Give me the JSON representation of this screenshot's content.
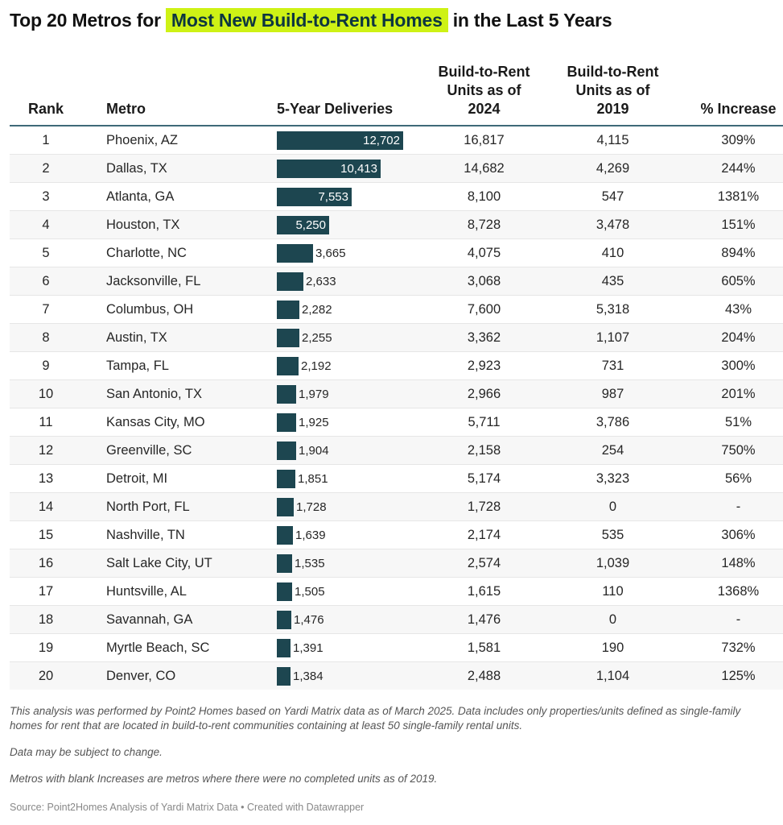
{
  "title": {
    "prefix": "Top 20 Metros for",
    "highlight": "Most New Build-to-Rent Homes",
    "suffix": "in the Last 5 Years",
    "highlight_color": "#cef215"
  },
  "colors": {
    "bar": "#1d4650",
    "header_rule": "#3f6a78"
  },
  "chart_data": {
    "type": "table",
    "title": "Top 20 Metros for Most New Build-to-Rent Homes in the Last 5 Years",
    "columns": [
      "Rank",
      "Metro",
      "5-Year Deliveries",
      "Build-to-Rent Units as of 2024",
      "Build-to-Rent Units as of 2019",
      "% Increase"
    ],
    "bar_column": "5-Year Deliveries",
    "bar_max": 12702,
    "rows": [
      {
        "rank": "1",
        "metro": "Phoenix, AZ",
        "deliveries": 12702,
        "deliveries_label": "12,702",
        "units_2024": "16,817",
        "units_2019": "4,115",
        "increase": "309%"
      },
      {
        "rank": "2",
        "metro": "Dallas, TX",
        "deliveries": 10413,
        "deliveries_label": "10,413",
        "units_2024": "14,682",
        "units_2019": "4,269",
        "increase": "244%"
      },
      {
        "rank": "3",
        "metro": "Atlanta, GA",
        "deliveries": 7553,
        "deliveries_label": "7,553",
        "units_2024": "8,100",
        "units_2019": "547",
        "increase": "1381%"
      },
      {
        "rank": "4",
        "metro": "Houston, TX",
        "deliveries": 5250,
        "deliveries_label": "5,250",
        "units_2024": "8,728",
        "units_2019": "3,478",
        "increase": "151%"
      },
      {
        "rank": "5",
        "metro": "Charlotte, NC",
        "deliveries": 3665,
        "deliveries_label": "3,665",
        "units_2024": "4,075",
        "units_2019": "410",
        "increase": "894%"
      },
      {
        "rank": "6",
        "metro": "Jacksonville, FL",
        "deliveries": 2633,
        "deliveries_label": "2,633",
        "units_2024": "3,068",
        "units_2019": "435",
        "increase": "605%"
      },
      {
        "rank": "7",
        "metro": "Columbus, OH",
        "deliveries": 2282,
        "deliveries_label": "2,282",
        "units_2024": "7,600",
        "units_2019": "5,318",
        "increase": "43%"
      },
      {
        "rank": "8",
        "metro": "Austin, TX",
        "deliveries": 2255,
        "deliveries_label": "2,255",
        "units_2024": "3,362",
        "units_2019": "1,107",
        "increase": "204%"
      },
      {
        "rank": "9",
        "metro": "Tampa, FL",
        "deliveries": 2192,
        "deliveries_label": "2,192",
        "units_2024": "2,923",
        "units_2019": "731",
        "increase": "300%"
      },
      {
        "rank": "10",
        "metro": "San Antonio, TX",
        "deliveries": 1979,
        "deliveries_label": "1,979",
        "units_2024": "2,966",
        "units_2019": "987",
        "increase": "201%"
      },
      {
        "rank": "11",
        "metro": "Kansas City, MO",
        "deliveries": 1925,
        "deliveries_label": "1,925",
        "units_2024": "5,711",
        "units_2019": "3,786",
        "increase": "51%"
      },
      {
        "rank": "12",
        "metro": "Greenville, SC",
        "deliveries": 1904,
        "deliveries_label": "1,904",
        "units_2024": "2,158",
        "units_2019": "254",
        "increase": "750%"
      },
      {
        "rank": "13",
        "metro": "Detroit, MI",
        "deliveries": 1851,
        "deliveries_label": "1,851",
        "units_2024": "5,174",
        "units_2019": "3,323",
        "increase": "56%"
      },
      {
        "rank": "14",
        "metro": "North Port, FL",
        "deliveries": 1728,
        "deliveries_label": "1,728",
        "units_2024": "1,728",
        "units_2019": "0",
        "increase": "-"
      },
      {
        "rank": "15",
        "metro": "Nashville, TN",
        "deliveries": 1639,
        "deliveries_label": "1,639",
        "units_2024": "2,174",
        "units_2019": "535",
        "increase": "306%"
      },
      {
        "rank": "16",
        "metro": "Salt Lake City, UT",
        "deliveries": 1535,
        "deliveries_label": "1,535",
        "units_2024": "2,574",
        "units_2019": "1,039",
        "increase": "148%"
      },
      {
        "rank": "17",
        "metro": "Huntsville, AL",
        "deliveries": 1505,
        "deliveries_label": "1,505",
        "units_2024": "1,615",
        "units_2019": "110",
        "increase": "1368%"
      },
      {
        "rank": "18",
        "metro": "Savannah, GA",
        "deliveries": 1476,
        "deliveries_label": "1,476",
        "units_2024": "1,476",
        "units_2019": "0",
        "increase": "-"
      },
      {
        "rank": "19",
        "metro": "Myrtle Beach, SC",
        "deliveries": 1391,
        "deliveries_label": "1,391",
        "units_2024": "1,581",
        "units_2019": "190",
        "increase": "732%"
      },
      {
        "rank": "20",
        "metro": "Denver, CO",
        "deliveries": 1384,
        "deliveries_label": "1,384",
        "units_2024": "2,488",
        "units_2019": "1,104",
        "increase": "125%"
      }
    ]
  },
  "headers": {
    "rank": "Rank",
    "metro": "Metro",
    "deliveries": "5-Year Deliveries",
    "units_2024_l1": "Build-to-Rent",
    "units_2024_l2": "Units as of",
    "units_2024_l3": "2024",
    "units_2019_l1": "Build-to-Rent",
    "units_2019_l2": "Units as of",
    "units_2019_l3": "2019",
    "increase": "% Increase"
  },
  "notes": [
    "This analysis was performed by Point2 Homes based on Yardi Matrix data as of March 2025. Data includes only properties/units defined as single-family homes for rent that are located in build-to-rent communities containing at least 50 single-family rental units.",
    "Data may be subject to change.",
    "Metros with blank Increases are metros where there were no completed units as of 2019."
  ],
  "source": "Source: Point2Homes Analysis of Yardi Matrix Data • Created with Datawrapper"
}
